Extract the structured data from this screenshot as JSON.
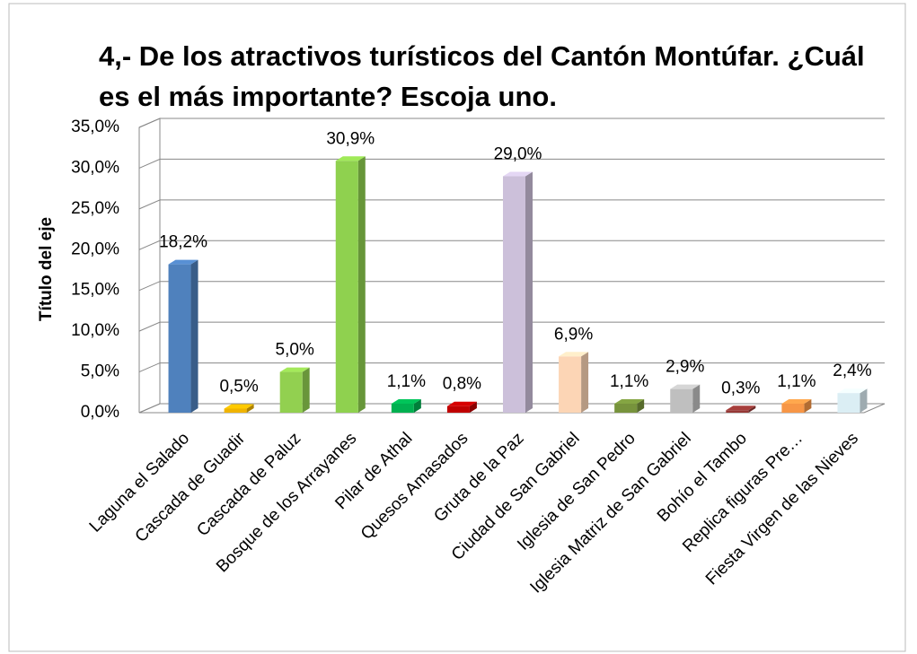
{
  "chart_data": {
    "type": "bar3d",
    "title": "4,- De los atractivos turísticos del Cantón Montúfar. ¿Cuál es el más importante? Escoja uno.",
    "y_label": "Título del eje",
    "categories": [
      "Laguna el Salado",
      "Cascada de Guadir",
      "Cascada de Paluz",
      "Bosque de los Arrayanes",
      "Pilar de Athal",
      "Quesos Amasados",
      "Gruta de la Paz",
      "Ciudad de San Gabriel",
      "Iglesia de San Pedro",
      "Iglesia Matriz de San Gabriel",
      "Bohío el Tambo",
      "Replica figuras Pre…",
      "Fiesta Virgen de las Nieves"
    ],
    "values": [
      18.2,
      0.5,
      5.0,
      30.9,
      1.1,
      0.8,
      29.0,
      6.9,
      1.1,
      2.9,
      0.3,
      1.1,
      2.4
    ],
    "value_labels": [
      "18,2%",
      "0,5%",
      "5,0%",
      "30,9%",
      "1,1%",
      "0,8%",
      "29,0%",
      "6,9%",
      "1,1%",
      "2,9%",
      "0,3%",
      "1,1%",
      "2,4%"
    ],
    "colors": [
      "#4f81bd",
      "#f0b400",
      "#92d050",
      "#8fd14f",
      "#00b050",
      "#c00000",
      "#ccc0da",
      "#fcd5b5",
      "#77933c",
      "#bfbfbf",
      "#953735",
      "#f79646",
      "#dbeef4"
    ],
    "ylim": [
      0,
      35
    ],
    "yticks": [
      {
        "value": 0,
        "label": "0,0%"
      },
      {
        "value": 5,
        "label": "5,0%"
      },
      {
        "value": 10,
        "label": "10,0%"
      },
      {
        "value": 15,
        "label": "15,0%"
      },
      {
        "value": 20,
        "label": "20,0%"
      },
      {
        "value": 25,
        "label": "25,0%"
      },
      {
        "value": 30,
        "label": "30,0%"
      },
      {
        "value": 35,
        "label": "35,0%"
      }
    ],
    "grid": true
  }
}
